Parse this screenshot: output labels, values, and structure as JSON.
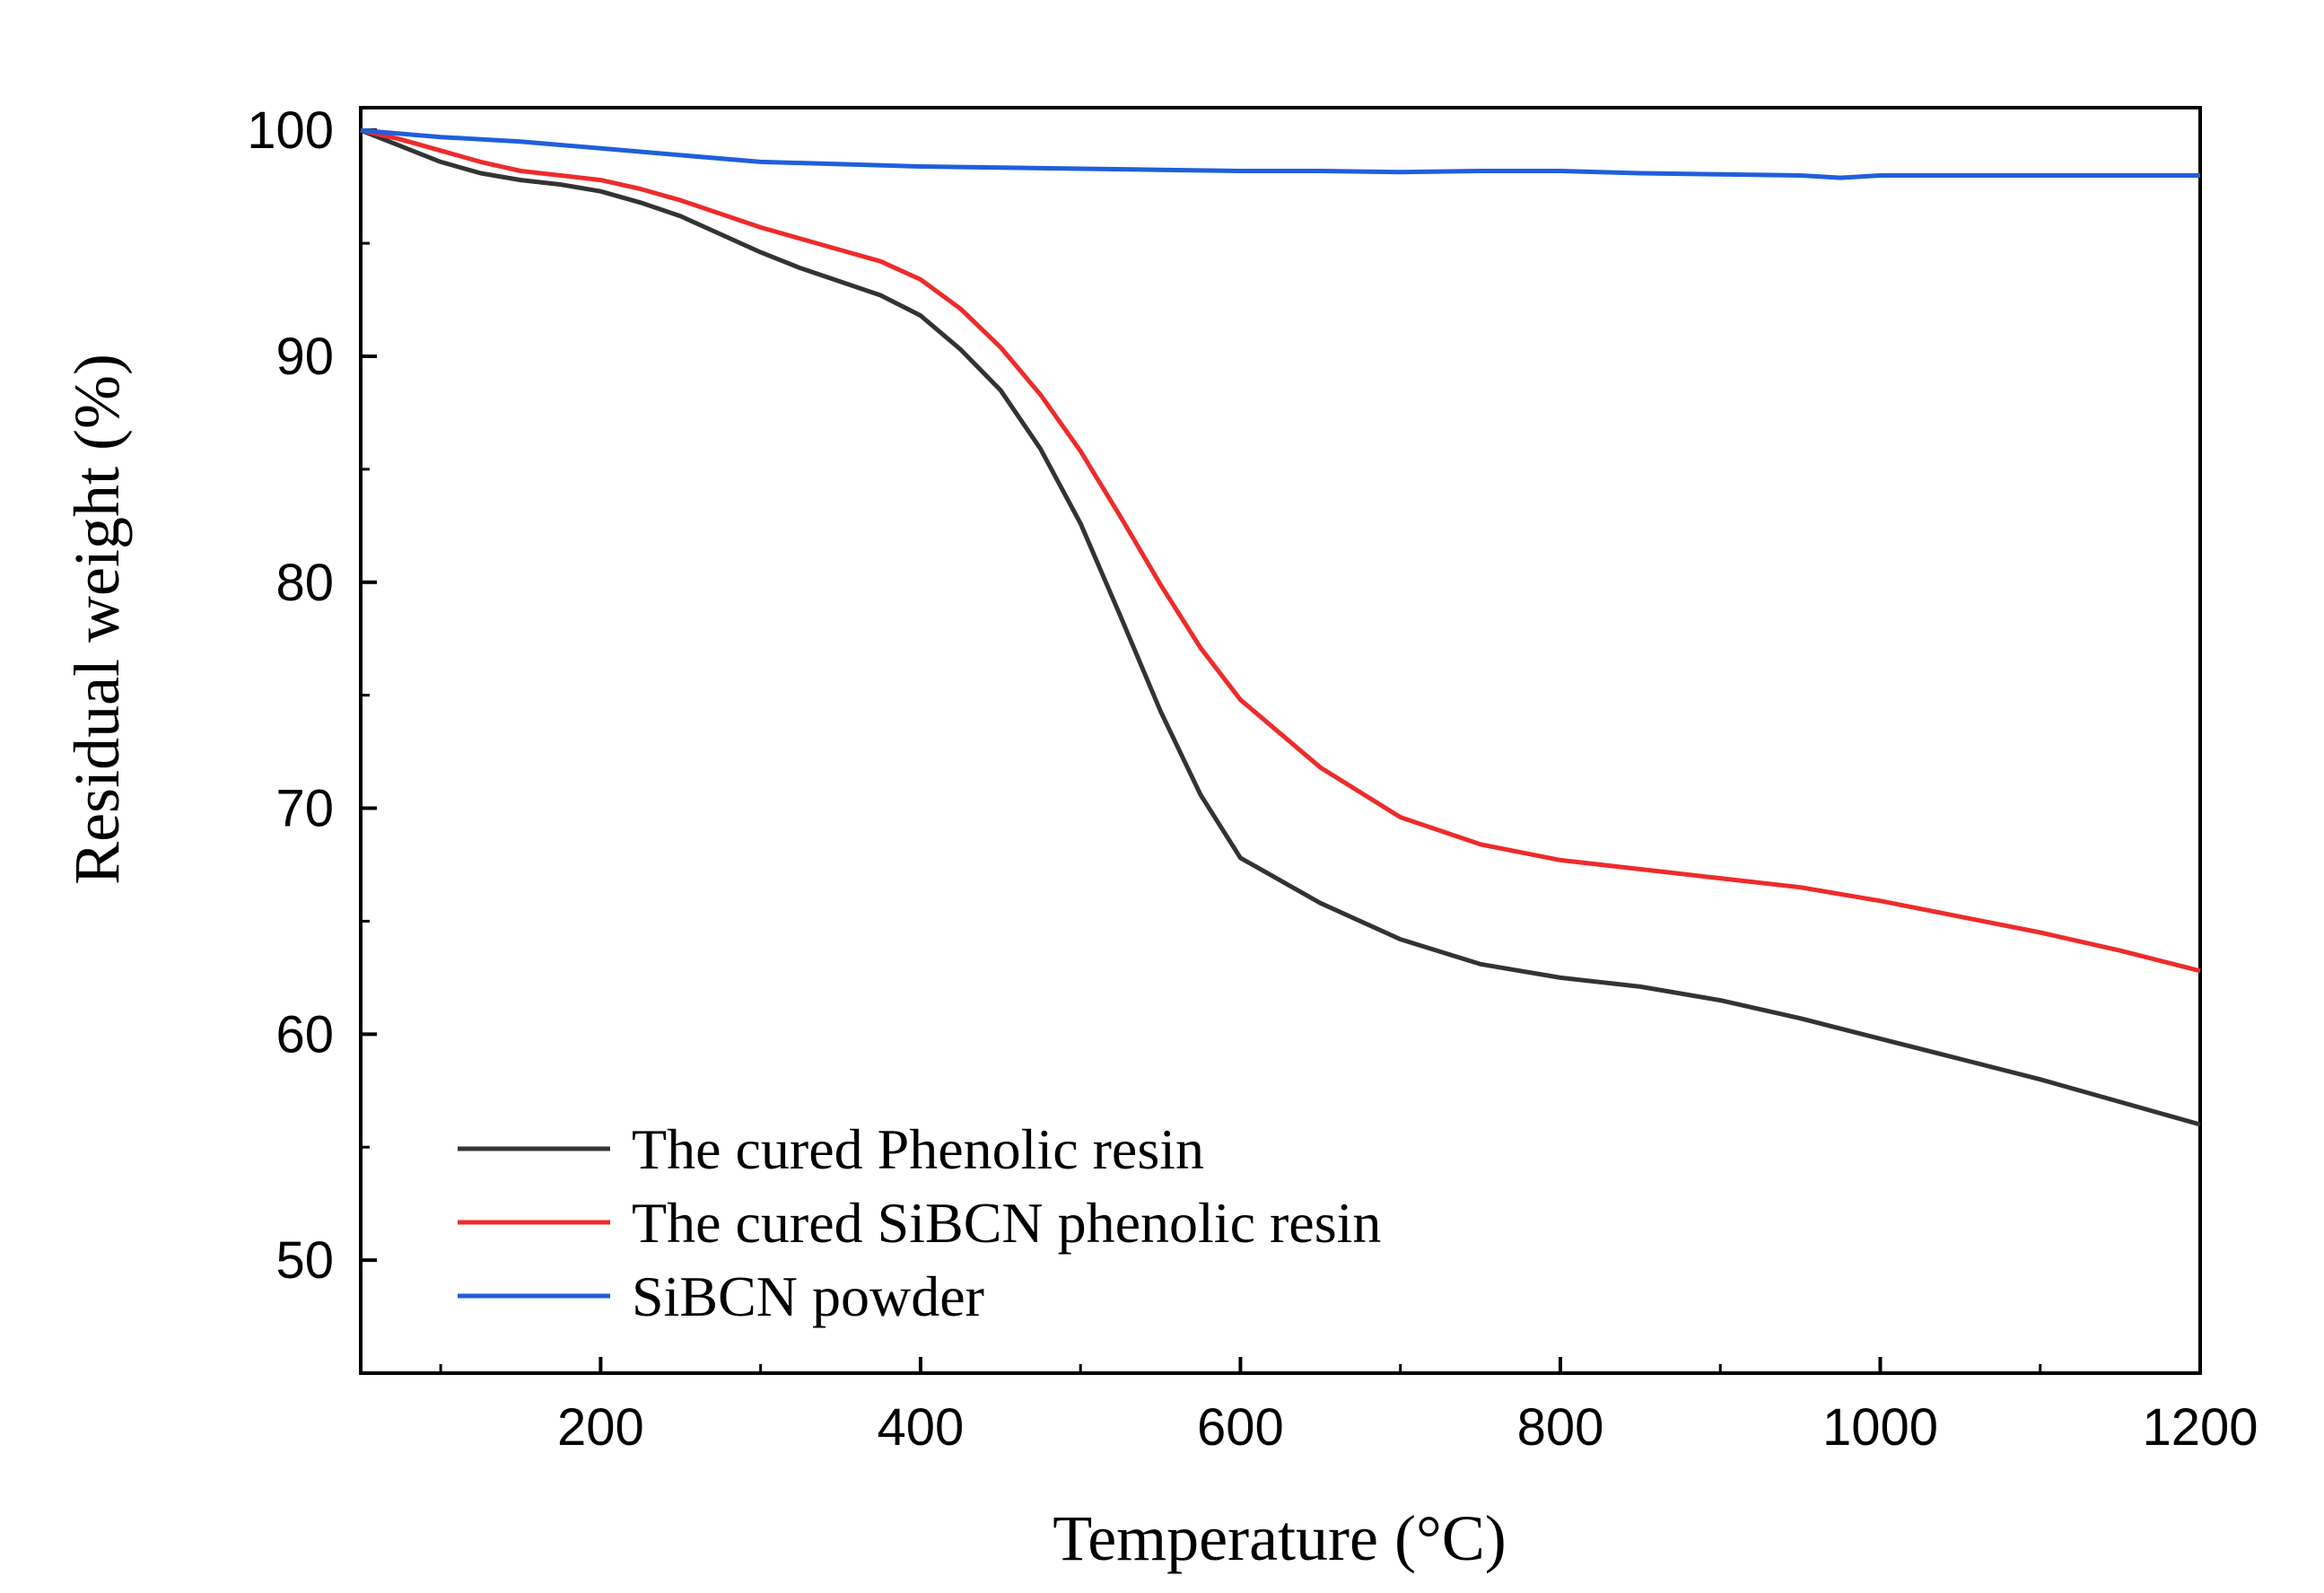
{
  "chart_data": {
    "type": "line",
    "title": "",
    "xlabel": "Temperature (°C)",
    "ylabel": "Residual weight (%)",
    "xlim": [
      50,
      1200
    ],
    "ylim": [
      45,
      101
    ],
    "xticks": [
      200,
      400,
      600,
      800,
      1000,
      1200
    ],
    "xtick_labels": [
      "200",
      "400",
      "600",
      "800",
      "1000",
      "1200"
    ],
    "xminor": [
      100,
      300,
      500,
      700,
      900,
      1100
    ],
    "yticks": [
      50,
      60,
      70,
      80,
      90,
      100
    ],
    "ytick_labels": [
      "50",
      "60",
      "70",
      "80",
      "90",
      "100"
    ],
    "yminor": [
      55,
      65,
      75,
      85,
      95
    ],
    "legend_position": "bottom-left",
    "series": [
      {
        "name": "The cured Phenolic resin",
        "color": "#333333",
        "x": [
          50,
          75,
          100,
          125,
          150,
          175,
          200,
          225,
          250,
          275,
          300,
          325,
          350,
          375,
          400,
          425,
          450,
          475,
          500,
          525,
          550,
          575,
          600,
          650,
          700,
          750,
          800,
          850,
          900,
          950,
          1000,
          1050,
          1100,
          1150,
          1200
        ],
        "y": [
          100,
          99.3,
          98.6,
          98.1,
          97.8,
          97.6,
          97.3,
          96.8,
          96.2,
          95.4,
          94.6,
          93.9,
          93.3,
          92.7,
          91.8,
          90.3,
          88.5,
          85.9,
          82.6,
          78.5,
          74.3,
          70.6,
          67.8,
          65.8,
          64.2,
          63.1,
          62.5,
          62.1,
          61.5,
          60.7,
          59.8,
          58.9,
          58.0,
          57.0,
          56.0
        ]
      },
      {
        "name": "The cured SiBCN phenolic resin",
        "color": "#ee2b2b",
        "x": [
          50,
          75,
          100,
          125,
          150,
          175,
          200,
          225,
          250,
          275,
          300,
          325,
          350,
          375,
          400,
          425,
          450,
          475,
          500,
          525,
          550,
          575,
          600,
          650,
          700,
          750,
          800,
          850,
          900,
          950,
          1000,
          1050,
          1100,
          1150,
          1200
        ],
        "y": [
          100,
          99.6,
          99.1,
          98.6,
          98.2,
          98.0,
          97.8,
          97.4,
          96.9,
          96.3,
          95.7,
          95.2,
          94.7,
          94.2,
          93.4,
          92.1,
          90.4,
          88.3,
          85.8,
          82.9,
          79.9,
          77.1,
          74.8,
          71.8,
          69.6,
          68.4,
          67.7,
          67.3,
          66.9,
          66.5,
          65.9,
          65.2,
          64.5,
          63.7,
          62.8
        ]
      },
      {
        "name": "SiBCN powder",
        "color": "#1f5fdc",
        "x": [
          50,
          100,
          150,
          200,
          250,
          300,
          350,
          400,
          450,
          500,
          550,
          600,
          650,
          700,
          750,
          800,
          850,
          900,
          950,
          975,
          1000,
          1050,
          1100,
          1150,
          1200
        ],
        "y": [
          100,
          99.7,
          99.5,
          99.2,
          98.9,
          98.6,
          98.5,
          98.4,
          98.35,
          98.3,
          98.25,
          98.2,
          98.2,
          98.15,
          98.2,
          98.2,
          98.1,
          98.05,
          98.0,
          97.9,
          98.0,
          98.0,
          98.0,
          98.0,
          98.0
        ]
      }
    ]
  }
}
